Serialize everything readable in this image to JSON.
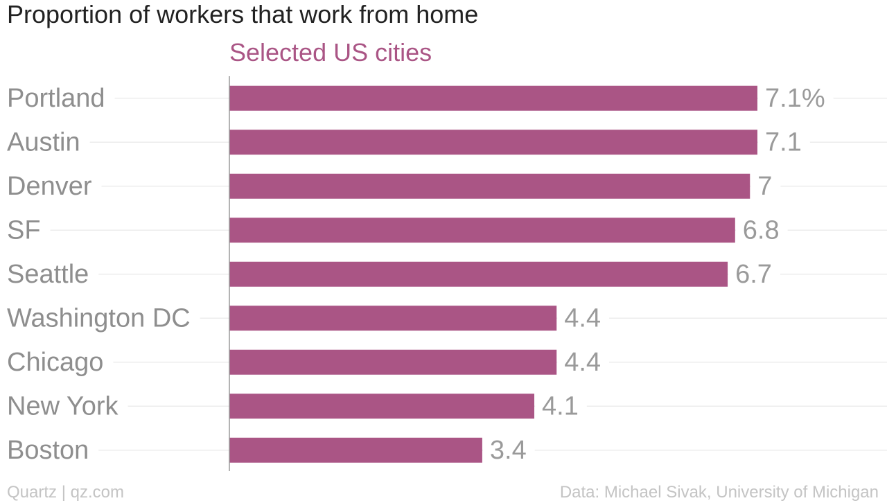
{
  "chart_data": {
    "type": "bar",
    "orientation": "horizontal",
    "title": "Proportion of workers that work from home",
    "subtitle": "Selected US cities",
    "categories": [
      "Portland",
      "Austin",
      "Denver",
      "SF",
      "Seattle",
      "Washington DC",
      "Chicago",
      "New York",
      "Boston"
    ],
    "values": [
      7.1,
      7.1,
      7.0,
      6.8,
      6.7,
      4.4,
      4.4,
      4.1,
      3.4
    ],
    "value_labels": [
      "7.1%",
      "7.1",
      "7",
      "6.8",
      "6.7",
      "4.4",
      "4.4",
      "4.1",
      "3.4"
    ],
    "xlim": [
      0,
      7.1
    ],
    "grid": true,
    "bar_color": "#aa5585",
    "subtitle_color": "#aa5585"
  },
  "footer": {
    "source_left": "Quartz | qz.com",
    "source_right": "Data: Michael Sivak, University of Michigan"
  }
}
